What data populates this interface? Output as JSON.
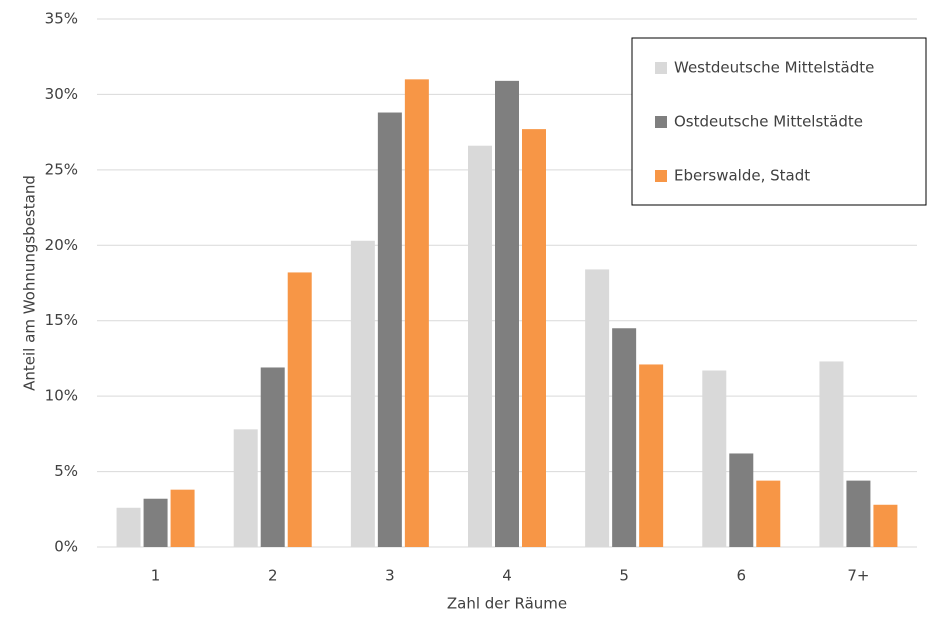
{
  "chart_data": {
    "type": "bar",
    "x_label": "Zahl der Räume",
    "y_label": "Anteil am Wohnungsbestand",
    "categories": [
      "1",
      "2",
      "3",
      "4",
      "5",
      "6",
      "7+"
    ],
    "series": [
      {
        "name": "Westdeutsche Mittelstädte",
        "color": "#d9d9d9",
        "values": [
          2.6,
          7.8,
          20.3,
          26.6,
          18.4,
          11.7,
          12.3
        ]
      },
      {
        "name": "Ostdeutsche Mittelstädte",
        "color": "#7f7f7f",
        "values": [
          3.2,
          11.9,
          28.8,
          30.9,
          14.5,
          6.2,
          4.4
        ]
      },
      {
        "name": "Eberswalde, Stadt",
        "color": "#f79646",
        "values": [
          3.8,
          18.2,
          31.0,
          27.7,
          12.1,
          4.4,
          2.8
        ]
      }
    ],
    "ylim": [
      0,
      35
    ],
    "yticks": [
      {
        "value": 0,
        "label": "0%"
      },
      {
        "value": 5,
        "label": "5%"
      },
      {
        "value": 10,
        "label": "10%"
      },
      {
        "value": 15,
        "label": "15%"
      },
      {
        "value": 20,
        "label": "20%"
      },
      {
        "value": 25,
        "label": "25%"
      },
      {
        "value": 30,
        "label": "30%"
      },
      {
        "value": 35,
        "label": "35%"
      }
    ],
    "grid": true,
    "legend": "top-right"
  }
}
